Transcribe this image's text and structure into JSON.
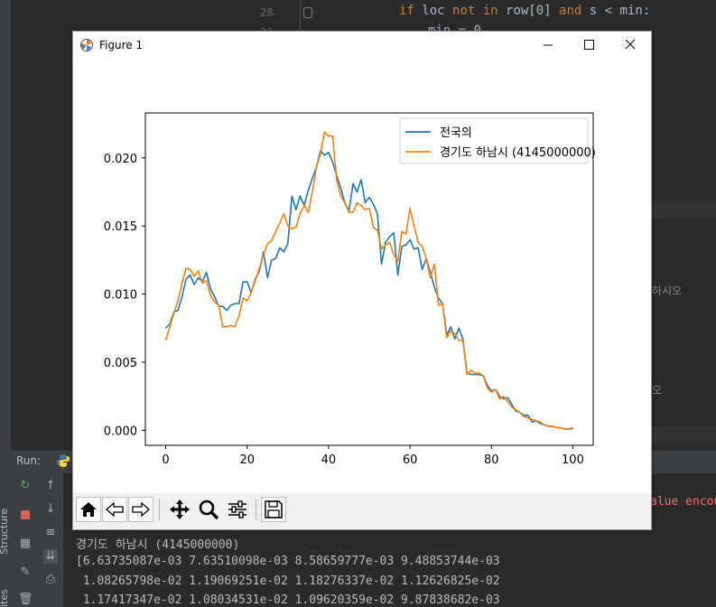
{
  "ide": {
    "line_numbers": [
      "28",
      "29"
    ],
    "code_line_1": {
      "kw1": "if",
      "t1": " loc ",
      "kw2": "not in",
      "t2": " row[0] ",
      "kw3": "and",
      "t3": " s < min:"
    },
    "code_line_2": "min = 0",
    "right_hint_1": "하시오",
    "right_hint_2": "오",
    "run_label": "Run:",
    "structure_tab": "Structure",
    "favorites_tab": "ites",
    "error_text": "alue encou",
    "console_lines": [
      "경기도 하남시 (4145000000)",
      "[6.63735087e-03 7.63510098e-03 8.58659777e-03 9.48853744e-03",
      " 1.08265798e-02 1.19069251e-02 1.18276337e-02 1.12626825e-02",
      " 1.17417347e-02 1.08034531e-02 1.09620359e-02 9.87838682e-03"
    ]
  },
  "window": {
    "title": "Figure 1"
  },
  "chart_data": {
    "type": "line",
    "title": "",
    "xlabel": "",
    "ylabel": "",
    "xlim": [
      -5,
      105
    ],
    "ylim": [
      -0.0011,
      0.0233
    ],
    "xticks": [
      "0",
      "20",
      "40",
      "60",
      "80",
      "100"
    ],
    "yticks": [
      "0.000",
      "0.005",
      "0.010",
      "0.015",
      "0.020"
    ],
    "legend_position": "top-right",
    "x": [
      0,
      1,
      2,
      3,
      4,
      5,
      6,
      7,
      8,
      9,
      10,
      11,
      12,
      13,
      14,
      15,
      16,
      17,
      18,
      19,
      20,
      21,
      22,
      23,
      24,
      25,
      26,
      27,
      28,
      29,
      30,
      31,
      32,
      33,
      34,
      35,
      36,
      37,
      38,
      39,
      40,
      41,
      42,
      43,
      44,
      45,
      46,
      47,
      48,
      49,
      50,
      51,
      52,
      53,
      54,
      55,
      56,
      57,
      58,
      59,
      60,
      61,
      62,
      63,
      64,
      65,
      66,
      67,
      68,
      69,
      70,
      71,
      72,
      73,
      74,
      75,
      76,
      77,
      78,
      79,
      80,
      81,
      82,
      83,
      84,
      85,
      86,
      87,
      88,
      89,
      90,
      91,
      92,
      93,
      94,
      95,
      96,
      97,
      98,
      99,
      100
    ],
    "series": [
      {
        "name": "전국의",
        "color": "#1f77b4",
        "values": [
          0.0075,
          0.0078,
          0.0087,
          0.0088,
          0.0098,
          0.0111,
          0.0114,
          0.0107,
          0.0112,
          0.0109,
          0.0116,
          0.0104,
          0.0098,
          0.0091,
          0.0091,
          0.0088,
          0.0092,
          0.0093,
          0.0093,
          0.0109,
          0.0109,
          0.0101,
          0.0111,
          0.0117,
          0.0131,
          0.0112,
          0.0125,
          0.0126,
          0.0134,
          0.0131,
          0.0137,
          0.0172,
          0.0162,
          0.0172,
          0.0165,
          0.0176,
          0.0185,
          0.0193,
          0.0205,
          0.0202,
          0.0204,
          0.0197,
          0.0187,
          0.0178,
          0.0167,
          0.0161,
          0.0181,
          0.0175,
          0.0184,
          0.0167,
          0.0171,
          0.0166,
          0.0159,
          0.0122,
          0.0138,
          0.0142,
          0.0145,
          0.0114,
          0.0135,
          0.0136,
          0.014,
          0.0133,
          0.0134,
          0.0118,
          0.0126,
          0.0116,
          0.0105,
          0.0097,
          0.0093,
          0.007,
          0.0076,
          0.0067,
          0.0075,
          0.0067,
          0.0042,
          0.0041,
          0.0041,
          0.0041,
          0.004,
          0.0033,
          0.0029,
          0.003,
          0.0025,
          0.0023,
          0.0024,
          0.0019,
          0.0014,
          0.0013,
          0.0011,
          0.0011,
          0.0006,
          0.0007,
          0.0005,
          0.0004,
          0.0003,
          0.0003,
          0.0002,
          0.0002,
          0.0001,
          0.0001,
          0.0001
        ]
      },
      {
        "name": "경기도 하남시 (4145000000)",
        "color": "#ff7f0e",
        "values": [
          0.0066,
          0.0076,
          0.0086,
          0.0095,
          0.0108,
          0.0119,
          0.0118,
          0.0113,
          0.0117,
          0.0108,
          0.011,
          0.0099,
          0.0094,
          0.0092,
          0.0076,
          0.0076,
          0.0077,
          0.0076,
          0.0084,
          0.0097,
          0.0095,
          0.0101,
          0.011,
          0.0119,
          0.0129,
          0.0137,
          0.0139,
          0.0146,
          0.0152,
          0.0159,
          0.015,
          0.0148,
          0.0149,
          0.0159,
          0.0165,
          0.016,
          0.0175,
          0.0193,
          0.0203,
          0.0219,
          0.0216,
          0.0216,
          0.0184,
          0.0172,
          0.0167,
          0.016,
          0.016,
          0.0167,
          0.0165,
          0.0162,
          0.0163,
          0.0149,
          0.0147,
          0.0133,
          0.0136,
          0.0138,
          0.0129,
          0.0124,
          0.0146,
          0.0144,
          0.0163,
          0.015,
          0.0138,
          0.0135,
          0.0126,
          0.0112,
          0.0122,
          0.0092,
          0.0093,
          0.0068,
          0.0073,
          0.0071,
          0.0066,
          0.0066,
          0.0041,
          0.0044,
          0.0042,
          0.0042,
          0.004,
          0.0031,
          0.0028,
          0.003,
          0.0023,
          0.0025,
          0.0021,
          0.0017,
          0.0015,
          0.0013,
          0.001,
          0.0009,
          0.0008,
          0.0007,
          0.0006,
          0.0004,
          0.0003,
          0.0003,
          0.0002,
          0.0002,
          0.0001,
          0.0001,
          0.0002
        ]
      }
    ]
  },
  "toolbar": {
    "buttons": [
      "home-icon",
      "back-icon",
      "forward-icon",
      "pan-icon",
      "zoom-icon",
      "configure-icon",
      "save-icon"
    ]
  }
}
